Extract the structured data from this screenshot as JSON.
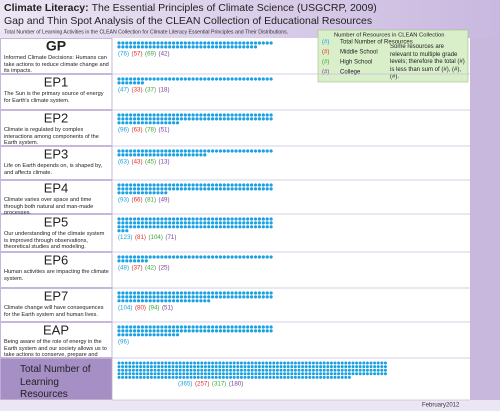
{
  "chart_data": {
    "type": "dot",
    "title": {
      "lead": "Climate Literacy:",
      "rest": "The Essential Principles of Climate Science (USGCRP, 2009)"
    },
    "subtitle": "Gap and Thin Spot Analysis of the CLEAN Collection of Educational Resources",
    "description": "Total Number of Learning Activities in the CLEAN Collection for Climate Literacy Essential Principles and Their Distributions.",
    "footer": "February2012",
    "legend_title": "Number of Resources in CLEAN Collection",
    "legend_marker": "(#)",
    "legend_note": "Some resources are relevant to multiple grade levels; therefore the total (#) is less than sum of (#), (#), (#).",
    "dot_color": "#1ba1e2",
    "categories": [
      "GP",
      "EP1",
      "EP2",
      "EP3",
      "EP4",
      "EP5",
      "EP6",
      "EP7",
      "EAP",
      "Total Number of Learning Resources"
    ],
    "descriptions": [
      "Informed Climate Decisions: Humans can take actions to reduce climate change and its impacts.",
      "The Sun is the primary source of energy for Earth's climate system.",
      "Climate is regulated by complex interactions among components of the Earth system.",
      "Life on Earth depends on, is shaped by, and affects climate.",
      "Climate varies over space and time through both natural and man-made processes.",
      "Our understanding of the climate system is improved through observations, theoretical studies and modeling.",
      "Human activities are impacting the climate system.",
      "Climate change will have consequences for the Earth system and human lives.",
      "Being aware of the role of energy in the Earth system and our society allows us to take actions to conserve, prepare and make informed energy choices.",
      null
    ],
    "series": [
      {
        "name": "Total Number of Resources",
        "color": "#1b9ee0",
        "values": [
          76,
          47,
          96,
          63,
          93,
          123,
          48,
          104,
          96,
          365
        ],
        "value_labels": [
          "(76)",
          "(47)",
          "(96)",
          "(63)",
          "(93)",
          "(123)",
          "(48)",
          "(104)",
          "(96)",
          "(365)"
        ]
      },
      {
        "name": "Middle School",
        "color": "#e0302a",
        "values": [
          57,
          33,
          63,
          43,
          66,
          81,
          37,
          80,
          null,
          257
        ],
        "value_labels": [
          "(57)",
          "(33)",
          "(63)",
          "(43)",
          "(66)",
          "(81)",
          "(37)",
          "(80)",
          null,
          "(257)"
        ]
      },
      {
        "name": "High School",
        "color": "#3aa63a",
        "values": [
          69,
          37,
          78,
          45,
          81,
          104,
          42,
          94,
          null,
          317
        ],
        "value_labels": [
          "(69)",
          "(37)",
          "(78)",
          "(45)",
          "(81)",
          "(104)",
          "(42)",
          "(94)",
          null,
          "(317)"
        ]
      },
      {
        "name": "College",
        "color": "#7a3ea0",
        "values": [
          42,
          18,
          51,
          13,
          49,
          71,
          25,
          51,
          null,
          180
        ],
        "value_labels": [
          "(42)",
          "(18)",
          "(51)",
          "(13)",
          "(49)",
          "(71)",
          "(25)",
          "(51)",
          null,
          "(180)"
        ]
      }
    ]
  }
}
